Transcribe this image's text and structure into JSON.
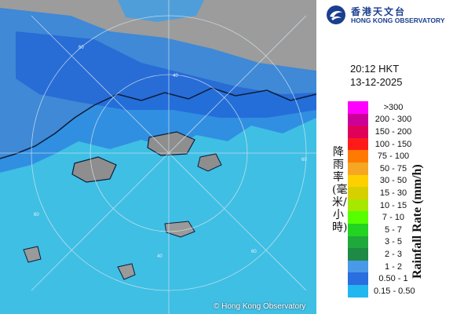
{
  "header": {
    "org_name_zh": "香港天文台",
    "org_name_en": "HONG KONG OBSERVATORY"
  },
  "timestamp": {
    "time": "20:12 HKT",
    "date": "13-12-2025"
  },
  "map": {
    "credit": "© Hong Kong Observatory",
    "range_ring_labels": [
      "40",
      "40",
      "60",
      "60",
      "60",
      "60"
    ],
    "sea_color": "#3ec0e6",
    "land_color": "#9e9e9e",
    "outline_color": "#0b1d3a"
  },
  "legend": {
    "title_zh": "降雨率(毫米/小時)",
    "title_en": "Rainfall Rate (mm/h)",
    "items": [
      {
        "label": ">300",
        "color": "#ff00ff"
      },
      {
        "label": "200 - 300",
        "color": "#cc0099"
      },
      {
        "label": "150 - 200",
        "color": "#e0005a"
      },
      {
        "label": "100 - 150",
        "color": "#ff1a1a"
      },
      {
        "label": "75 - 100",
        "color": "#ff7a00"
      },
      {
        "label": "50 - 75",
        "color": "#f5a623"
      },
      {
        "label": "30 - 50",
        "color": "#ffd000"
      },
      {
        "label": "15 - 30",
        "color": "#d6d000"
      },
      {
        "label": "10 - 15",
        "color": "#a6e800"
      },
      {
        "label": "7 - 10",
        "color": "#55ff00"
      },
      {
        "label": "5 - 7",
        "color": "#22d322"
      },
      {
        "label": "3 - 5",
        "color": "#1fa83c"
      },
      {
        "label": "2 - 3",
        "color": "#1e8a46"
      },
      {
        "label": "1 - 2",
        "color": "#4a98e8"
      },
      {
        "label": "0.50 - 1",
        "color": "#2a6ee0"
      },
      {
        "label": "0.15 - 0.50",
        "color": "#22b8ef"
      }
    ]
  }
}
